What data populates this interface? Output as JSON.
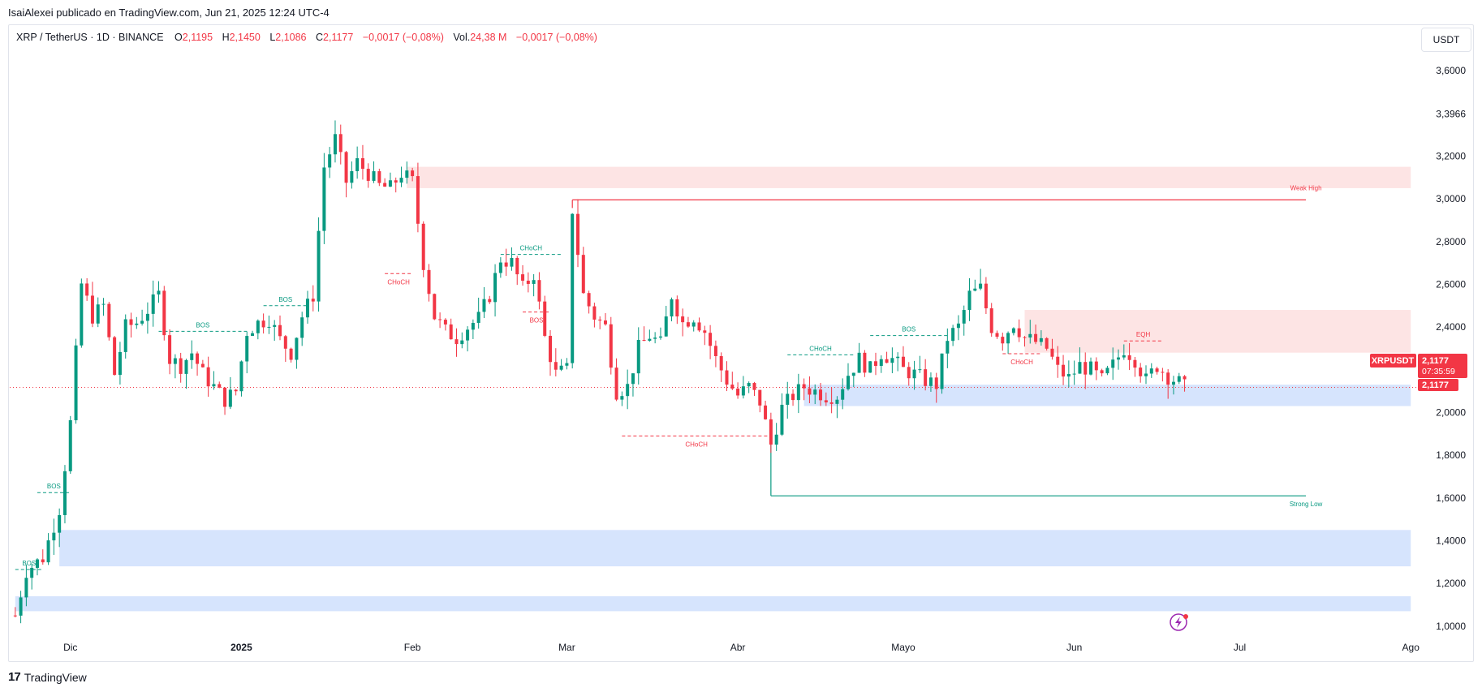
{
  "publisher_line": "IsaiAlexei publicado en TradingView.com, Jun 21, 2025 12:24 UTC-4",
  "legend": {
    "symbol": "XRP / TetherUS · 1D · BINANCE",
    "open_label": "O",
    "open": "2,1195",
    "high_label": "H",
    "high": "2,1450",
    "low_label": "L",
    "low": "2,1086",
    "close_label": "C",
    "close": "2,1177",
    "change": "−0,0017 (−0,08%)",
    "vol_label": "Vol.",
    "vol": "24,38 M",
    "vol_change": "−0,0017 (−0,08%)"
  },
  "unit_button": "USDT",
  "brand": {
    "logo_icon": "tradingview-logo-icon",
    "name": "TradingView"
  },
  "badges": {
    "symbol": "XRPUSDT",
    "price": "2,1177",
    "countdown": "07:35:59",
    "last": "2,1177"
  },
  "colors": {
    "up": "#089981",
    "down": "#f23645",
    "supply_zone": "#fde4e4",
    "demand_zone": "#d6e4fd"
  },
  "chart_data": {
    "type": "candlestick",
    "symbol": "XRP / TetherUS",
    "interval": "1D",
    "ylim": [
      0.95,
      3.68
    ],
    "y_ticks": [
      1.0,
      1.2,
      1.4,
      1.6,
      1.8,
      2.0,
      2.2,
      2.4,
      2.6,
      2.8,
      3.0,
      3.2,
      3.3966,
      3.6
    ],
    "y_tick_labels": [
      "1,0000",
      "1,2000",
      "1,4000",
      "1,6000",
      "1,8000",
      "2,0000",
      "2,2000",
      "2,4000",
      "2,6000",
      "2,8000",
      "3,0000",
      "3,2000",
      "3,3966",
      "3,6000"
    ],
    "x_ticks": [
      {
        "date": "2024-12-01",
        "label": "Dic"
      },
      {
        "date": "2025-01-01",
        "label": "2025"
      },
      {
        "date": "2025-02-01",
        "label": "Feb"
      },
      {
        "date": "2025-03-01",
        "label": "Mar"
      },
      {
        "date": "2025-04-01",
        "label": "Abr"
      },
      {
        "date": "2025-05-01",
        "label": "Mayo"
      },
      {
        "date": "2025-06-01",
        "label": "Jun"
      },
      {
        "date": "2025-07-01",
        "label": "Jul"
      },
      {
        "date": "2025-08-01",
        "label": "Ago"
      }
    ],
    "x_range": [
      "2024-11-20",
      "2025-08-02"
    ],
    "last_price": 2.1177,
    "grid": false,
    "path": [
      [
        "2024-11-21",
        1.05
      ],
      [
        "2024-11-23",
        1.26
      ],
      [
        "2024-11-26",
        1.32
      ],
      [
        "2024-11-29",
        1.55
      ],
      [
        "2024-12-01",
        1.95
      ],
      [
        "2024-12-03",
        2.6
      ],
      [
        "2024-12-05",
        2.45
      ],
      [
        "2024-12-07",
        2.5
      ],
      [
        "2024-12-09",
        2.18
      ],
      [
        "2024-12-11",
        2.4
      ],
      [
        "2024-12-13",
        2.42
      ],
      [
        "2024-12-15",
        2.48
      ],
      [
        "2024-12-17",
        2.55
      ],
      [
        "2024-12-19",
        2.25
      ],
      [
        "2024-12-21",
        2.22
      ],
      [
        "2024-12-23",
        2.28
      ],
      [
        "2024-12-25",
        2.18
      ],
      [
        "2024-12-27",
        2.12
      ],
      [
        "2024-12-29",
        2.06
      ],
      [
        "2024-12-31",
        2.1
      ],
      [
        "2025-01-02",
        2.38
      ],
      [
        "2025-01-04",
        2.42
      ],
      [
        "2025-01-06",
        2.44
      ],
      [
        "2025-01-08",
        2.34
      ],
      [
        "2025-01-10",
        2.28
      ],
      [
        "2025-01-12",
        2.45
      ],
      [
        "2025-01-14",
        2.55
      ],
      [
        "2025-01-16",
        3.15
      ],
      [
        "2025-01-18",
        3.28
      ],
      [
        "2025-01-20",
        3.08
      ],
      [
        "2025-01-22",
        3.17
      ],
      [
        "2025-01-24",
        3.12
      ],
      [
        "2025-01-26",
        3.06
      ],
      [
        "2025-01-28",
        3.05
      ],
      [
        "2025-01-30",
        3.12
      ],
      [
        "2025-02-01",
        3.08
      ],
      [
        "2025-02-03",
        2.7
      ],
      [
        "2025-02-05",
        2.45
      ],
      [
        "2025-02-07",
        2.38
      ],
      [
        "2025-02-09",
        2.35
      ],
      [
        "2025-02-11",
        2.4
      ],
      [
        "2025-02-13",
        2.44
      ],
      [
        "2025-02-15",
        2.55
      ],
      [
        "2025-02-17",
        2.72
      ],
      [
        "2025-02-19",
        2.7
      ],
      [
        "2025-02-21",
        2.58
      ],
      [
        "2025-02-23",
        2.65
      ],
      [
        "2025-02-25",
        2.35
      ],
      [
        "2025-02-27",
        2.18
      ],
      [
        "2025-03-01",
        2.2
      ],
      [
        "2025-03-02",
        2.95
      ],
      [
        "2025-03-04",
        2.55
      ],
      [
        "2025-03-06",
        2.45
      ],
      [
        "2025-03-08",
        2.4
      ],
      [
        "2025-03-10",
        2.1
      ],
      [
        "2025-03-12",
        2.12
      ],
      [
        "2025-03-14",
        2.3
      ],
      [
        "2025-03-16",
        2.36
      ],
      [
        "2025-03-18",
        2.32
      ],
      [
        "2025-03-20",
        2.55
      ],
      [
        "2025-03-22",
        2.42
      ],
      [
        "2025-03-24",
        2.45
      ],
      [
        "2025-03-26",
        2.38
      ],
      [
        "2025-03-28",
        2.25
      ],
      [
        "2025-03-30",
        2.15
      ],
      [
        "2025-04-01",
        2.08
      ],
      [
        "2025-04-03",
        2.12
      ],
      [
        "2025-04-05",
        2.05
      ],
      [
        "2025-04-07",
        1.85
      ],
      [
        "2025-04-09",
        2.02
      ],
      [
        "2025-04-11",
        2.08
      ],
      [
        "2025-04-13",
        2.12
      ],
      [
        "2025-04-15",
        2.1
      ],
      [
        "2025-04-17",
        2.08
      ],
      [
        "2025-04-19",
        2.08
      ],
      [
        "2025-04-21",
        2.18
      ],
      [
        "2025-04-23",
        2.25
      ],
      [
        "2025-04-25",
        2.2
      ],
      [
        "2025-04-27",
        2.28
      ],
      [
        "2025-04-29",
        2.25
      ],
      [
        "2025-05-01",
        2.2
      ],
      [
        "2025-05-03",
        2.18
      ],
      [
        "2025-05-05",
        2.15
      ],
      [
        "2025-05-07",
        2.13
      ],
      [
        "2025-05-09",
        2.35
      ],
      [
        "2025-05-11",
        2.4
      ],
      [
        "2025-05-13",
        2.55
      ],
      [
        "2025-05-15",
        2.58
      ],
      [
        "2025-05-17",
        2.4
      ],
      [
        "2025-05-19",
        2.35
      ],
      [
        "2025-05-21",
        2.42
      ],
      [
        "2025-05-23",
        2.35
      ],
      [
        "2025-05-25",
        2.33
      ],
      [
        "2025-05-27",
        2.3
      ],
      [
        "2025-05-29",
        2.2
      ],
      [
        "2025-05-31",
        2.16
      ],
      [
        "2025-06-02",
        2.22
      ],
      [
        "2025-06-04",
        2.2
      ],
      [
        "2025-06-06",
        2.15
      ],
      [
        "2025-06-08",
        2.22
      ],
      [
        "2025-06-10",
        2.3
      ],
      [
        "2025-06-12",
        2.25
      ],
      [
        "2025-06-14",
        2.15
      ],
      [
        "2025-06-16",
        2.22
      ],
      [
        "2025-06-18",
        2.17
      ],
      [
        "2025-06-20",
        2.14
      ],
      [
        "2025-06-21",
        2.1177
      ]
    ],
    "zones": [
      {
        "kind": "supply",
        "from": "2025-01-31",
        "to": "2025-08-01",
        "y_low": 3.05,
        "y_high": 3.15
      },
      {
        "kind": "supply",
        "from": "2025-05-23",
        "to": "2025-08-01",
        "y_low": 2.28,
        "y_high": 2.48
      },
      {
        "kind": "demand",
        "from": "2025-04-13",
        "to": "2025-08-01",
        "y_low": 2.03,
        "y_high": 2.13
      },
      {
        "kind": "demand",
        "from": "2024-11-29",
        "to": "2025-08-01",
        "y_low": 1.28,
        "y_high": 1.45
      },
      {
        "kind": "demand",
        "from": "2024-11-21",
        "to": "2025-08-01",
        "y_low": 1.07,
        "y_high": 1.14
      }
    ],
    "levels": [
      {
        "label": "Weak High",
        "y": 2.995,
        "from": "2025-03-02",
        "to": "2025-07-13",
        "color": "#f23645",
        "label_date": "2025-07-13"
      },
      {
        "label": "Strong Low",
        "y": 1.61,
        "from": "2025-04-07",
        "to": "2025-07-13",
        "color": "#089981",
        "label_date": "2025-07-13"
      }
    ],
    "structure_marks": [
      {
        "label": "BOS",
        "from": "2024-11-21",
        "to": "2024-11-26",
        "y": 1.265,
        "color": "#089981"
      },
      {
        "label": "BOS",
        "from": "2024-11-25",
        "to": "2024-12-01",
        "y": 1.625,
        "color": "#089981"
      },
      {
        "label": "BOS",
        "from": "2024-12-17",
        "to": "2025-01-02",
        "y": 2.38,
        "color": "#089981"
      },
      {
        "label": "BOS",
        "from": "2025-01-05",
        "to": "2025-01-13",
        "y": 2.5,
        "color": "#089981"
      },
      {
        "label": "CHoCH",
        "from": "2025-01-27",
        "to": "2025-02-01",
        "y": 2.65,
        "color": "#f23645"
      },
      {
        "label": "CHoCH",
        "from": "2025-02-17",
        "to": "2025-02-28",
        "y": 2.74,
        "color": "#089981"
      },
      {
        "label": "BOS",
        "from": "2025-02-21",
        "to": "2025-02-26",
        "y": 2.47,
        "color": "#f23645"
      },
      {
        "label": "CHoCH",
        "from": "2025-03-11",
        "to": "2025-04-07",
        "y": 1.89,
        "color": "#f23645"
      },
      {
        "label": "CHoCH",
        "from": "2025-04-10",
        "to": "2025-04-22",
        "y": 2.27,
        "color": "#089981"
      },
      {
        "label": "BOS",
        "from": "2025-04-25",
        "to": "2025-05-09",
        "y": 2.36,
        "color": "#089981"
      },
      {
        "label": "CHoCH",
        "from": "2025-05-19",
        "to": "2025-05-26",
        "y": 2.275,
        "color": "#f23645"
      },
      {
        "label": "EQH",
        "from": "2025-06-10",
        "to": "2025-06-17",
        "y": 2.335,
        "color": "#f23645"
      }
    ]
  }
}
